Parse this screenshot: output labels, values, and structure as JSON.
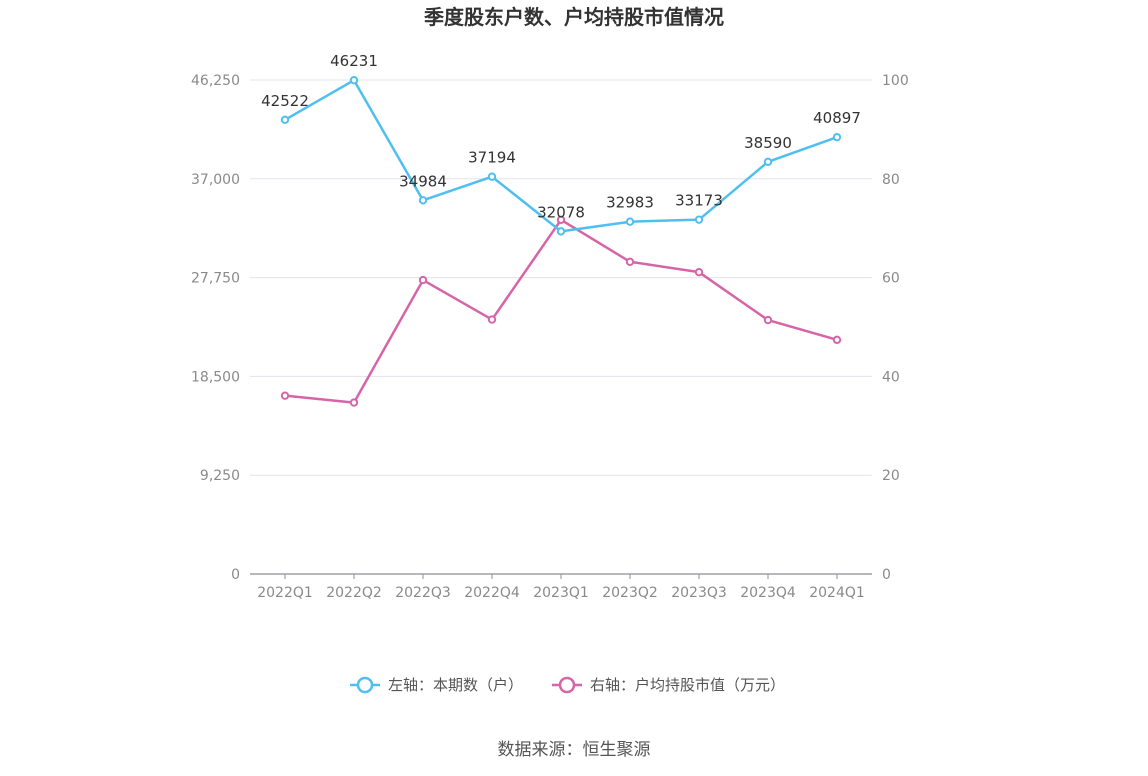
{
  "chart_data": {
    "type": "line",
    "title": "季度股东户数、户均持股市值情况",
    "categories": [
      "2022Q1",
      "2022Q2",
      "2022Q3",
      "2022Q4",
      "2023Q1",
      "2023Q2",
      "2023Q3",
      "2023Q4",
      "2024Q1"
    ],
    "y_left": {
      "ticks": [
        "0",
        "9,250",
        "18,500",
        "27,750",
        "37,000",
        "46,250"
      ],
      "min": 0,
      "max": 46250
    },
    "y_right": {
      "ticks": [
        "0",
        "20",
        "40",
        "60",
        "80",
        "100"
      ],
      "min": 0,
      "max": 100
    },
    "series": [
      {
        "name": "左轴：本期数（户）",
        "axis": "left",
        "color": "#4fbfef",
        "values": [
          42522,
          46231,
          34984,
          37194,
          32078,
          32983,
          33173,
          38590,
          40897
        ],
        "labels": [
          "42522",
          "46231",
          "34984",
          "37194",
          "32078",
          "32983",
          "33173",
          "38590",
          "40897"
        ]
      },
      {
        "name": "右轴：户均持股市值（万元）",
        "axis": "right",
        "color": "#d565a8",
        "values": [
          36.1,
          34.7,
          59.5,
          51.5,
          71.7,
          63.2,
          61.1,
          51.4,
          47.4
        ]
      }
    ],
    "grid": true,
    "legend_position": "bottom",
    "source": "数据来源：恒生聚源"
  }
}
